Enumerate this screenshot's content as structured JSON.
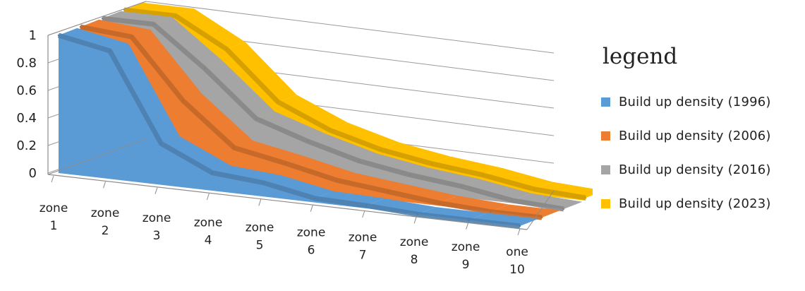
{
  "chart_data": {
    "type": "area",
    "categories": [
      "zone 1",
      "zone 2",
      "zone 3",
      "zone 4",
      "zone 5",
      "zone 6",
      "zone 7",
      "zone 8",
      "zone 9",
      "one 10"
    ],
    "category_lines": [
      [
        "zone",
        "1"
      ],
      [
        "zone",
        "2"
      ],
      [
        "zone",
        "3"
      ],
      [
        "zone",
        "4"
      ],
      [
        "zone",
        "5"
      ],
      [
        "zone",
        "6"
      ],
      [
        "zone",
        "7"
      ],
      [
        "zone",
        "8"
      ],
      [
        "zone",
        "9"
      ],
      [
        "one",
        "10"
      ]
    ],
    "y_ticks": [
      "0",
      "0.2",
      "0.4",
      "0.6",
      "0.8",
      "1"
    ],
    "ylim": [
      0,
      1
    ],
    "legend_title": "legend",
    "series": [
      {
        "name": "Build up density (1996)",
        "color": "#5b9bd5",
        "values": [
          1.0,
          0.93,
          0.3,
          0.13,
          0.1,
          0.03,
          0.02,
          0.0,
          0.0,
          0.0
        ]
      },
      {
        "name": "Build up density (2006)",
        "color": "#ed7d31",
        "values": [
          1.0,
          0.97,
          0.55,
          0.25,
          0.18,
          0.1,
          0.06,
          0.02,
          0.0,
          0.0
        ]
      },
      {
        "name": "Build up density (2016)",
        "color": "#a5a5a5",
        "values": [
          1.0,
          1.0,
          0.72,
          0.4,
          0.28,
          0.18,
          0.12,
          0.08,
          0.02,
          0.0
        ]
      },
      {
        "name": "Build up density (2023)",
        "color": "#ffc000",
        "values": [
          1.0,
          1.0,
          0.8,
          0.46,
          0.3,
          0.2,
          0.14,
          0.1,
          0.04,
          0.02
        ]
      }
    ]
  }
}
